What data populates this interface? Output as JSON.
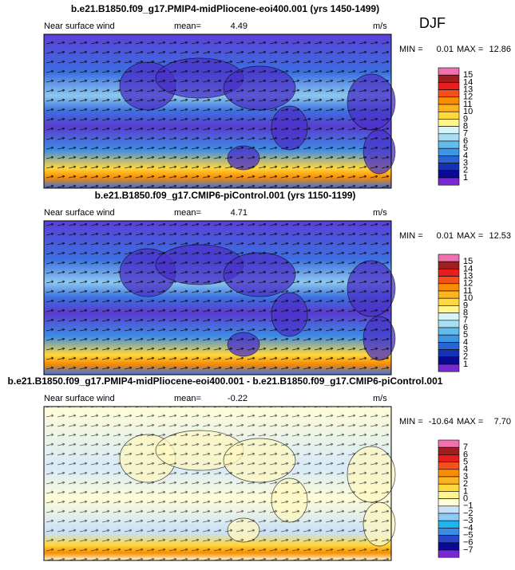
{
  "season": "DJF",
  "panels": [
    {
      "title": "b.e21.B1850.f09_g17.PMIP4-midPliocene-eoi400.001 (yrs 1450-1499)",
      "variable": "Near surface wind",
      "mean_label": "mean=",
      "mean": "4.49",
      "units": "m/s",
      "min_label": "MIN =",
      "min": "0.01",
      "max_label": "MAX =",
      "max": "12.86",
      "colorbar": {
        "labels": [
          "15",
          "14",
          "13",
          "12",
          "11",
          "10",
          "9",
          "8",
          "7",
          "6",
          "5",
          "4",
          "3",
          "2",
          "1"
        ],
        "colors": [
          "#f070b0",
          "#a01e1e",
          "#e81e1e",
          "#f5501a",
          "#fa8c00",
          "#fdb21e",
          "#ffd83c",
          "#fff58c",
          "#d8f4f8",
          "#a6def2",
          "#64bcee",
          "#3c96e6",
          "#2864d2",
          "#1432b4",
          "#0a0a96",
          "#7828d2"
        ]
      }
    },
    {
      "title": "b.e21.B1850.f09_g17.CMIP6-piControl.001 (yrs 1150-1199)",
      "variable": "Near surface wind",
      "mean_label": "mean=",
      "mean": "4.71",
      "units": "m/s",
      "min_label": "MIN =",
      "min": "0.01",
      "max_label": "MAX =",
      "max": "12.53",
      "colorbar": {
        "labels": [
          "15",
          "14",
          "13",
          "12",
          "11",
          "10",
          "9",
          "8",
          "7",
          "6",
          "5",
          "4",
          "3",
          "2",
          "1"
        ],
        "colors": [
          "#f070b0",
          "#a01e1e",
          "#e81e1e",
          "#f5501a",
          "#fa8c00",
          "#fdb21e",
          "#ffd83c",
          "#fff58c",
          "#d8f4f8",
          "#a6def2",
          "#64bcee",
          "#3c96e6",
          "#2864d2",
          "#1432b4",
          "#0a0a96",
          "#7828d2"
        ]
      }
    },
    {
      "title": "b.e21.B1850.f09_g17.PMIP4-midPliocene-eoi400.001 - b.e21.B1850.f09_g17.CMIP6-piControl.001",
      "variable": "Near surface wind",
      "mean_label": "mean=",
      "mean": "-0.22",
      "units": "m/s",
      "min_label": "MIN =",
      "min": "-10.64",
      "max_label": "MAX =",
      "max": "7.70",
      "colorbar": {
        "labels": [
          "7",
          "6",
          "5",
          "4",
          "3",
          "2",
          "1",
          "0",
          "−1",
          "−2",
          "−3",
          "−4",
          "−5",
          "−6",
          "−7"
        ],
        "colors": [
          "#f070b0",
          "#a01e1e",
          "#e81e1e",
          "#f5501a",
          "#fa8c00",
          "#fdb21e",
          "#ffd83c",
          "#fff58c",
          "#fffdd8",
          "#c8e0f8",
          "#8ccdf5",
          "#1eb4f0",
          "#3c8ce6",
          "#2846c8",
          "#0a0a96",
          "#7828d2"
        ]
      }
    }
  ]
}
